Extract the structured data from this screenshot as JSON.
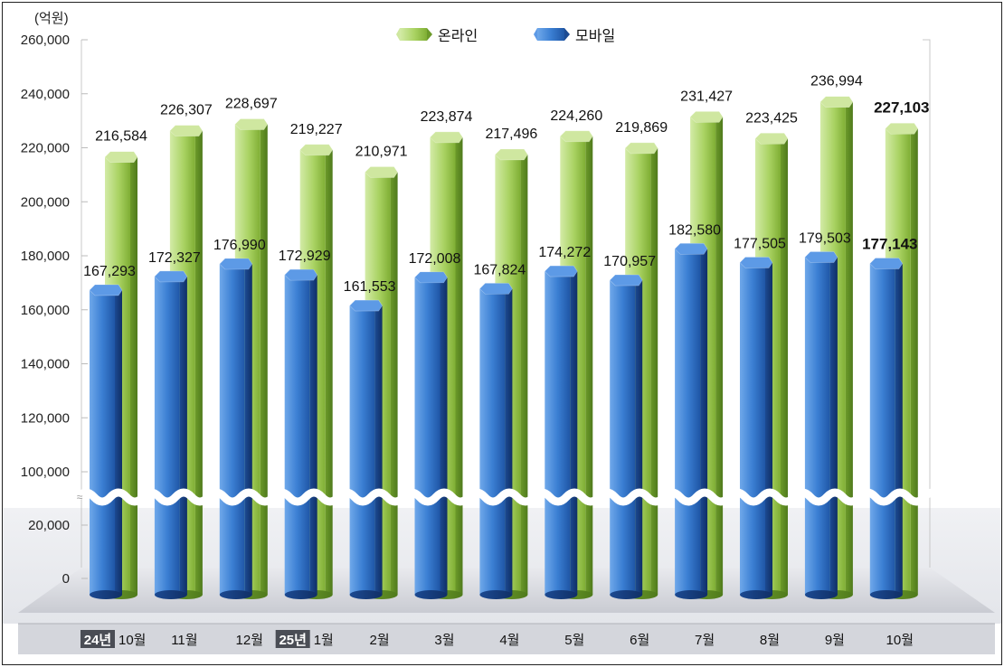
{
  "chart_data": {
    "type": "bar",
    "unit": "(억원)",
    "y_ticks": [
      "260,000",
      "240,000",
      "220,000",
      "200,000",
      "180,000",
      "160,000",
      "140,000",
      "120,000",
      "100,000",
      "20,000",
      "0"
    ],
    "ylim": [
      0,
      260000
    ],
    "axis_break": "between 20,000 and 100,000",
    "categories": [
      {
        "year_badge": "24년",
        "month": "10월"
      },
      {
        "year_badge": "",
        "month": "11월"
      },
      {
        "year_badge": "",
        "month": "12월"
      },
      {
        "year_badge": "25년",
        "month": "1월"
      },
      {
        "year_badge": "",
        "month": "2월"
      },
      {
        "year_badge": "",
        "month": "3월"
      },
      {
        "year_badge": "",
        "month": "4월"
      },
      {
        "year_badge": "",
        "month": "5월"
      },
      {
        "year_badge": "",
        "month": "6월"
      },
      {
        "year_badge": "",
        "month": "7월"
      },
      {
        "year_badge": "",
        "month": "8월"
      },
      {
        "year_badge": "",
        "month": "9월"
      },
      {
        "year_badge": "",
        "month": "10월"
      }
    ],
    "series": [
      {
        "name": "온라인",
        "color": "#8fbf3f",
        "values": [
          216584,
          226307,
          228697,
          219227,
          210971,
          223874,
          217496,
          224260,
          219869,
          231427,
          223425,
          236994,
          227103
        ],
        "labels": [
          "216,584",
          "226,307",
          "228,697",
          "219,227",
          "210,971",
          "223,874",
          "217,496",
          "224,260",
          "219,869",
          "231,427",
          "223,425",
          "236,994",
          "227,103"
        ]
      },
      {
        "name": "모바일",
        "color": "#2f6fc4",
        "values": [
          167293,
          172327,
          176990,
          172929,
          161553,
          172008,
          167824,
          174272,
          170957,
          182580,
          177505,
          179503,
          177143
        ],
        "labels": [
          "167,293",
          "172,327",
          "176,990",
          "172,929",
          "161,553",
          "172,008",
          "167,824",
          "174,272",
          "170,957",
          "182,580",
          "177,505",
          "179,503",
          "177,143"
        ]
      }
    ],
    "highlight_last": true,
    "legend_position": "top-center",
    "grid": false
  }
}
